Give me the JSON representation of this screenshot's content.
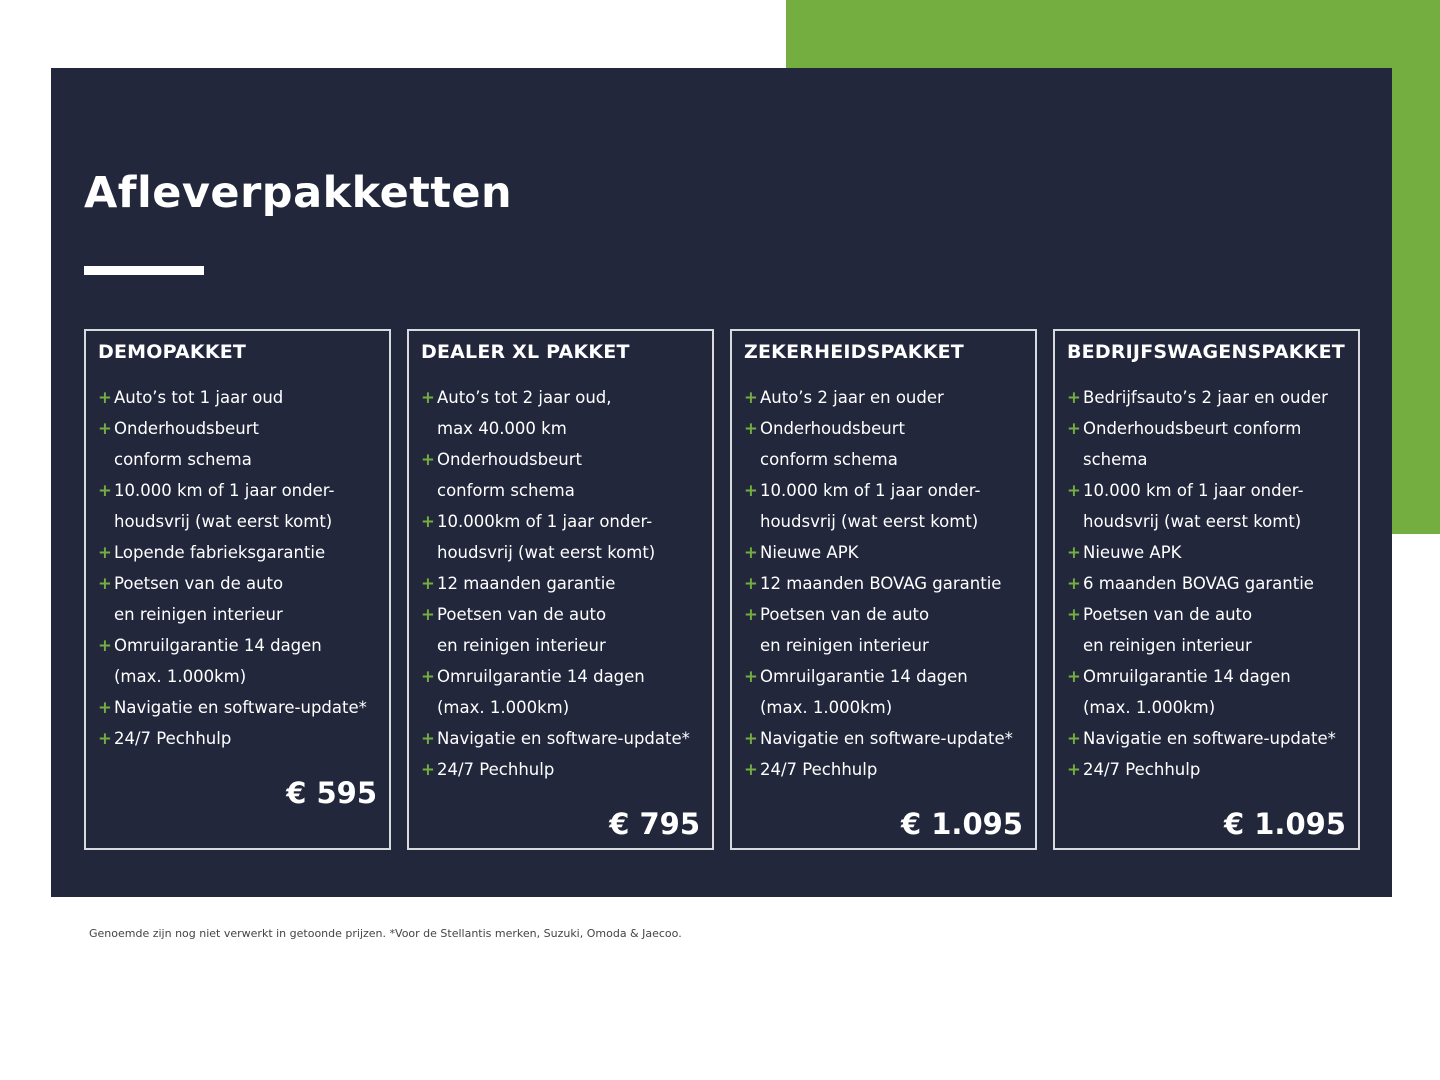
{
  "title": "Afleverpakketten",
  "colors": {
    "panel": "#22273c",
    "accent": "#74ad40"
  },
  "packages": [
    {
      "name": "DEMOPAKKET",
      "items": [
        "Auto’s tot 1 jaar oud",
        "Onderhoudsbeurt\nconform schema",
        "10.000 km of 1 jaar onder-\nhoudsvrij (wat eerst komt)",
        "Lopende fabrieksgarantie",
        "Poetsen van de auto\nen reinigen interieur",
        "Omruilgarantie 14 dagen\n(max. 1.000km)",
        "Navigatie en software-update*",
        "24/7 Pechhulp"
      ],
      "price": "€ 595"
    },
    {
      "name": "DEALER XL PAKKET",
      "items": [
        "Auto’s tot 2 jaar oud,\nmax 40.000 km",
        "Onderhoudsbeurt\nconform schema",
        "10.000km of 1 jaar onder-\nhoudsvrij (wat eerst komt)",
        "12 maanden garantie",
        "Poetsen van de auto\nen reinigen interieur",
        "Omruilgarantie 14 dagen\n(max. 1.000km)",
        "Navigatie en software-update*",
        "24/7 Pechhulp"
      ],
      "price": "€ 795"
    },
    {
      "name": "ZEKERHEIDSPAKKET",
      "items": [
        "Auto’s 2 jaar en ouder",
        "Onderhoudsbeurt\nconform schema",
        "10.000 km of 1 jaar onder-\nhoudsvrij (wat eerst komt)",
        "Nieuwe APK",
        "12 maanden BOVAG garantie",
        "Poetsen van de auto\nen reinigen interieur",
        "Omruilgarantie 14 dagen\n(max. 1.000km)",
        "Navigatie en software-update*",
        "24/7 Pechhulp"
      ],
      "price": "€ 1.095"
    },
    {
      "name": "BEDRIJFSWAGENSPAKKET",
      "items": [
        "Bedrijfsauto’s 2 jaar en ouder",
        "Onderhoudsbeurt conform\nschema",
        "10.000 km of 1 jaar onder-\nhoudsvrij (wat eerst komt)",
        "Nieuwe APK",
        "6 maanden BOVAG garantie",
        "Poetsen van de auto\nen reinigen interieur",
        "Omruilgarantie 14 dagen\n(max. 1.000km)",
        "Navigatie en software-update*",
        "24/7 Pechhulp"
      ],
      "price": "€ 1.095"
    }
  ],
  "footnote": "Genoemde zijn nog niet verwerkt in getoonde prijzen. *Voor de Stellantis merken, Suzuki, Omoda & Jaecoo."
}
